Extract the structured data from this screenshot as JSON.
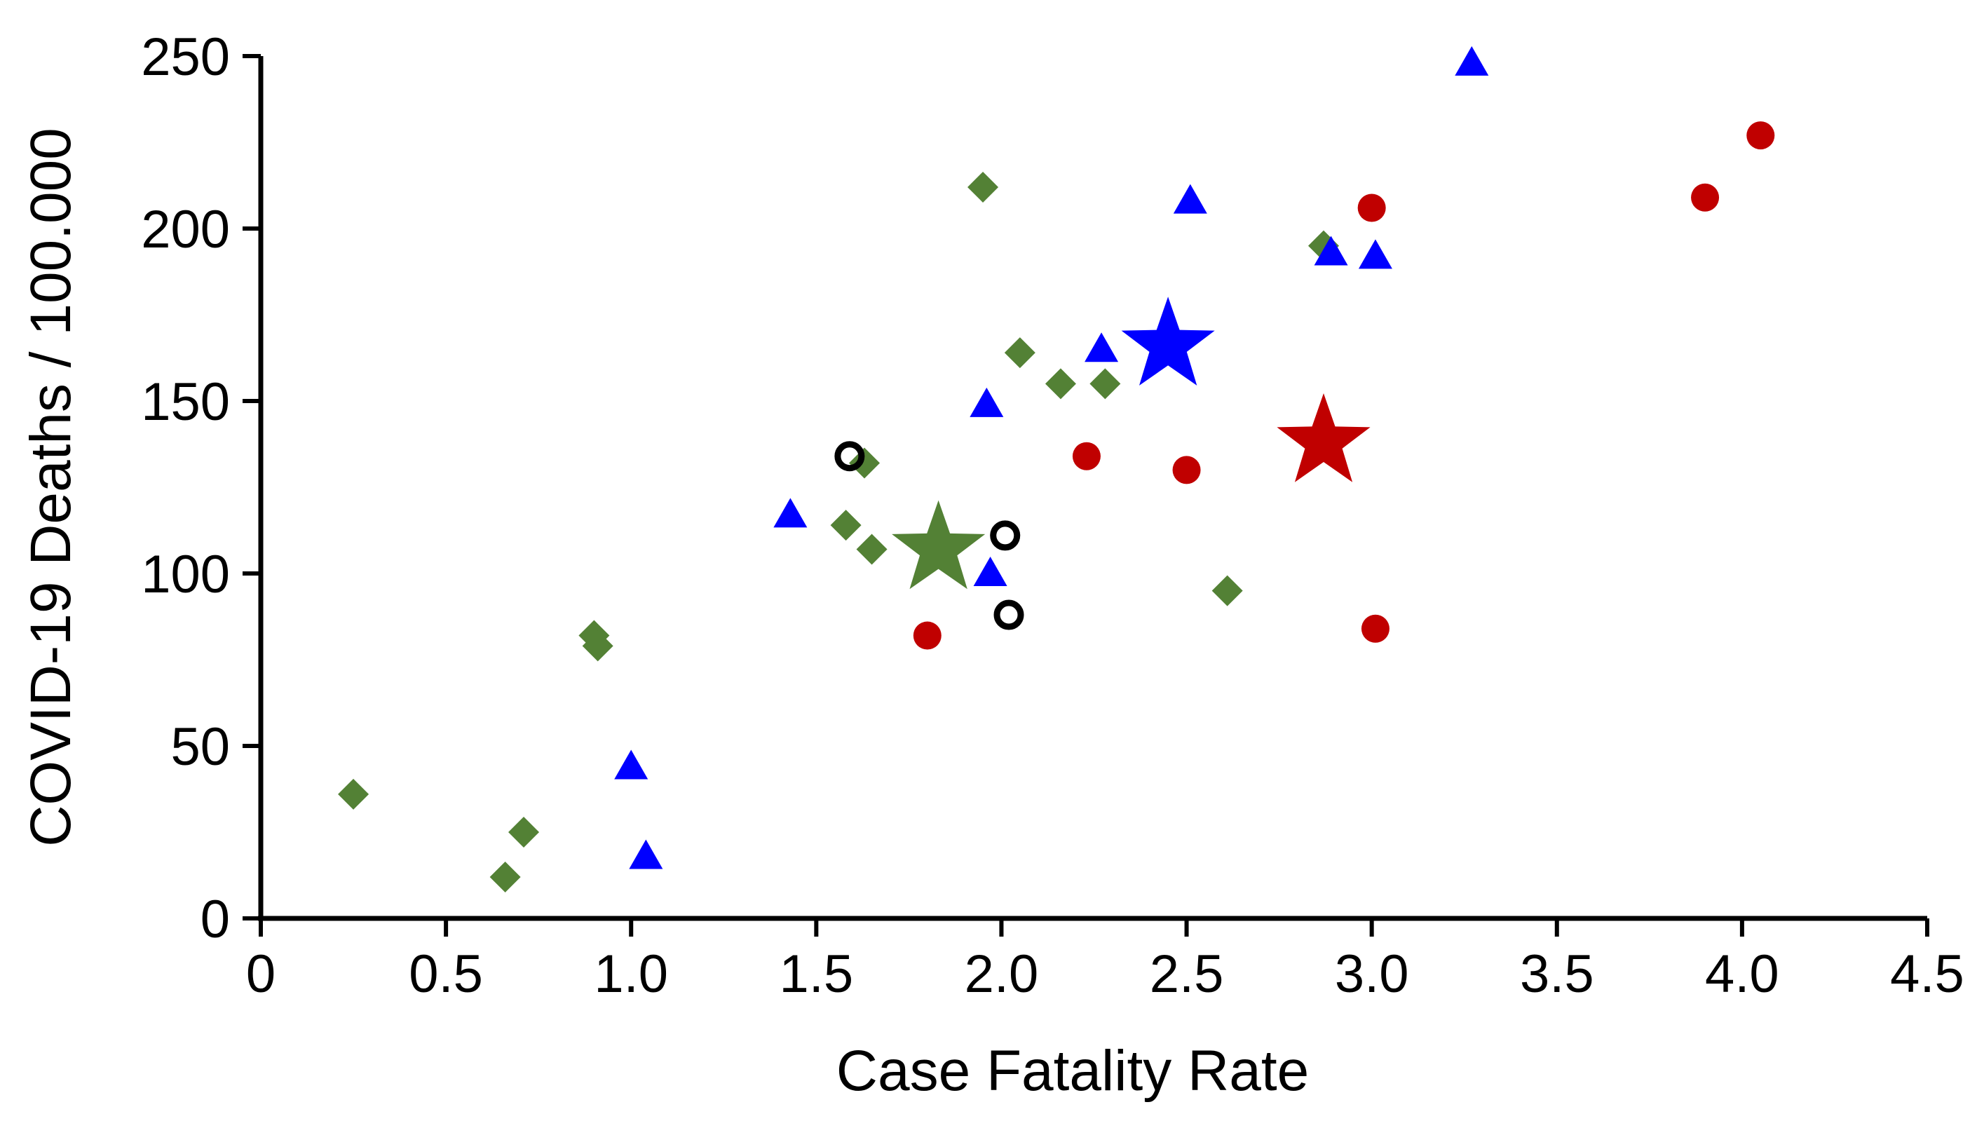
{
  "chart_data": {
    "type": "scatter",
    "title": "",
    "xlabel": "Case Fatality Rate",
    "ylabel": "COVID-19 Deaths / 100.000",
    "xlim": [
      0,
      4.5
    ],
    "ylim": [
      0,
      250
    ],
    "xticks": [
      0,
      0.5,
      1.0,
      1.5,
      2.0,
      2.5,
      3.0,
      3.5,
      4.0,
      4.5
    ],
    "xtick_labels": [
      "0",
      "0.5",
      "1.0",
      "1.5",
      "2.0",
      "2.5",
      "3.0",
      "3.5",
      "4.0",
      "4.5"
    ],
    "yticks": [
      0,
      50,
      100,
      150,
      200,
      250
    ],
    "ytick_labels": [
      "0",
      "50",
      "100",
      "150",
      "200",
      "250"
    ],
    "grid": false,
    "series": [
      {
        "name": "green-diamonds",
        "marker": "diamond",
        "color": "#538135",
        "points": [
          {
            "x": 0.25,
            "y": 36
          },
          {
            "x": 0.66,
            "y": 12
          },
          {
            "x": 0.71,
            "y": 25
          },
          {
            "x": 0.9,
            "y": 82
          },
          {
            "x": 0.91,
            "y": 79
          },
          {
            "x": 1.58,
            "y": 114
          },
          {
            "x": 1.63,
            "y": 132
          },
          {
            "x": 1.65,
            "y": 107
          },
          {
            "x": 1.95,
            "y": 212
          },
          {
            "x": 2.05,
            "y": 164
          },
          {
            "x": 2.16,
            "y": 155
          },
          {
            "x": 2.28,
            "y": 155
          },
          {
            "x": 2.61,
            "y": 95
          },
          {
            "x": 2.87,
            "y": 195
          }
        ]
      },
      {
        "name": "blue-triangles",
        "marker": "triangle",
        "color": "#0000ff",
        "points": [
          {
            "x": 1.0,
            "y": 44
          },
          {
            "x": 1.04,
            "y": 18
          },
          {
            "x": 1.43,
            "y": 117
          },
          {
            "x": 1.96,
            "y": 149
          },
          {
            "x": 1.97,
            "y": 100
          },
          {
            "x": 2.27,
            "y": 165
          },
          {
            "x": 2.51,
            "y": 208
          },
          {
            "x": 2.89,
            "y": 193
          },
          {
            "x": 3.01,
            "y": 192
          },
          {
            "x": 3.27,
            "y": 248
          }
        ]
      },
      {
        "name": "red-circles",
        "marker": "circle",
        "color": "#c00000",
        "points": [
          {
            "x": 1.8,
            "y": 82
          },
          {
            "x": 2.23,
            "y": 134
          },
          {
            "x": 2.5,
            "y": 130
          },
          {
            "x": 3.0,
            "y": 206
          },
          {
            "x": 3.01,
            "y": 84
          },
          {
            "x": 3.9,
            "y": 209
          },
          {
            "x": 4.05,
            "y": 227
          }
        ]
      },
      {
        "name": "open-circles",
        "marker": "open-circle",
        "color": "#000000",
        "points": [
          {
            "x": 1.59,
            "y": 134
          },
          {
            "x": 2.01,
            "y": 111
          },
          {
            "x": 2.02,
            "y": 88
          }
        ]
      },
      {
        "name": "stars",
        "marker": "star",
        "points": [
          {
            "x": 1.83,
            "y": 107,
            "color": "#538135"
          },
          {
            "x": 2.45,
            "y": 166,
            "color": "#0000ff"
          },
          {
            "x": 2.87,
            "y": 138,
            "color": "#c00000"
          }
        ]
      }
    ]
  }
}
